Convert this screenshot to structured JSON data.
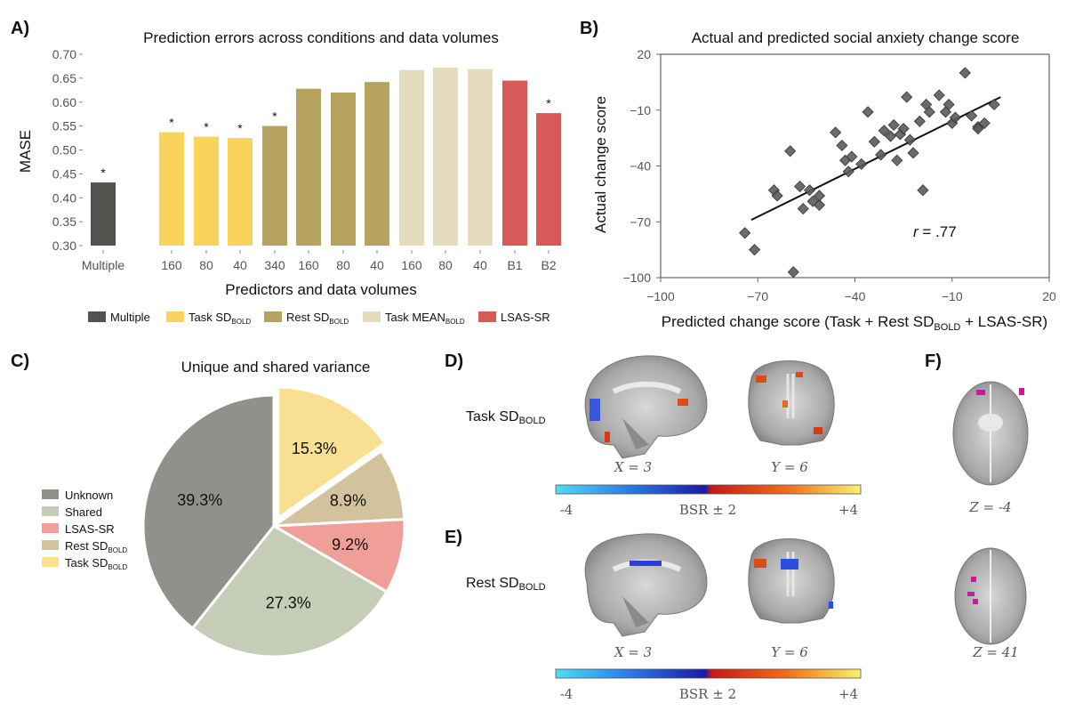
{
  "panels": {
    "a": "A)",
    "b": "B)",
    "c": "C)",
    "d": "D)",
    "e": "E)",
    "f": "F)"
  },
  "chart_data": [
    {
      "id": "A",
      "type": "bar",
      "title": "Prediction errors across conditions and data volumes",
      "xlabel": "Predictors and data volumes",
      "ylabel": "MASE",
      "ylim": [
        0.3,
        0.7
      ],
      "yticks": [
        "0.70",
        "0.65",
        "0.60",
        "0.55",
        "0.50",
        "0.45",
        "0.40",
        "0.35",
        "0.30"
      ],
      "categories": [
        "Multiple",
        "160",
        "80",
        "40",
        "340",
        "160",
        "80",
        "40",
        "160",
        "80",
        "40",
        "B1",
        "B2"
      ],
      "values": [
        0.432,
        0.537,
        0.528,
        0.525,
        0.55,
        0.628,
        0.62,
        0.642,
        0.667,
        0.672,
        0.669,
        0.645,
        0.577
      ],
      "groups": [
        "Multiple",
        "Task SD",
        "Task SD",
        "Task SD",
        "Rest SD",
        "Rest SD",
        "Rest SD",
        "Rest SD",
        "Task MEAN",
        "Task MEAN",
        "Task MEAN",
        "LSAS-SR",
        "LSAS-SR"
      ],
      "significance": [
        "*",
        "*",
        "*",
        "*",
        "*",
        "",
        "",
        "",
        "",
        "",
        "",
        "",
        "*"
      ],
      "colors": {
        "Multiple": "#51534e",
        "Task SD": "#f9d35c",
        "Rest SD": "#b6a35f",
        "Task MEAN": "#e4dcbd",
        "LSAS-SR": "#d75a58"
      },
      "legend": [
        {
          "name": "Multiple",
          "main": "Multiple",
          "sub": "",
          "color": "#51534e"
        },
        {
          "name": "Task SD",
          "main": "Task SD",
          "sub": "BOLD",
          "color": "#f9d35c"
        },
        {
          "name": "Rest SD",
          "main": "Rest SD",
          "sub": "BOLD",
          "color": "#b6a35f"
        },
        {
          "name": "Task MEAN",
          "main": "Task MEAN",
          "sub": "BOLD",
          "color": "#e4dcbd"
        },
        {
          "name": "LSAS-SR",
          "main": "LSAS-SR",
          "sub": "",
          "color": "#d75a58"
        }
      ]
    },
    {
      "id": "B",
      "type": "scatter",
      "title": "Actual and predicted social anxiety change score",
      "xlabel_main": "Predicted change score (Task + Rest SD",
      "xlabel_sub": "BOLD",
      "xlabel_end": " + LSAS-SR)",
      "ylabel": "Actual change score",
      "xlim": [
        -100,
        20
      ],
      "ylim": [
        -100,
        20
      ],
      "xticks": [
        "−100",
        "−70",
        "−40",
        "−10",
        "20"
      ],
      "yticks": [
        "20",
        "−10",
        "−40",
        "−70",
        "−100"
      ],
      "annotation_r": "r",
      "annotation_val": " = .77",
      "regression": {
        "x1": -72,
        "y1": -69,
        "x2": 5,
        "y2": -3
      },
      "points": [
        [
          -74,
          -76
        ],
        [
          -71,
          -85
        ],
        [
          -65,
          -53
        ],
        [
          -64,
          -56
        ],
        [
          -59,
          -97
        ],
        [
          -60,
          -32
        ],
        [
          -57,
          -51
        ],
        [
          -56,
          -63
        ],
        [
          -54,
          -53
        ],
        [
          -51,
          -61
        ],
        [
          -53,
          -59
        ],
        [
          -51,
          -56
        ],
        [
          -46,
          -22
        ],
        [
          -44,
          -29
        ],
        [
          -43,
          -37
        ],
        [
          -41,
          -35
        ],
        [
          -42,
          -43
        ],
        [
          -38,
          -39
        ],
        [
          -36,
          -11
        ],
        [
          -34,
          -27
        ],
        [
          -32,
          -34
        ],
        [
          -31,
          -21
        ],
        [
          -29,
          -24
        ],
        [
          -28,
          -18
        ],
        [
          -27,
          -37
        ],
        [
          -26,
          -23
        ],
        [
          -25,
          -20
        ],
        [
          -23,
          -26
        ],
        [
          -24,
          -3
        ],
        [
          -22,
          -33
        ],
        [
          -20,
          -16
        ],
        [
          -19,
          -53
        ],
        [
          -18,
          -7
        ],
        [
          -17,
          -11
        ],
        [
          -14,
          -2
        ],
        [
          -12,
          -11
        ],
        [
          -11,
          -7
        ],
        [
          -10,
          -17
        ],
        [
          -9,
          -14
        ],
        [
          -6,
          10
        ],
        [
          -4,
          -13
        ],
        [
          -2,
          -19
        ],
        [
          -2,
          -20
        ],
        [
          0,
          -17
        ],
        [
          3,
          -7
        ]
      ]
    },
    {
      "id": "C",
      "type": "pie",
      "title": "Unique and shared variance",
      "slices": [
        {
          "name": "Task SD",
          "sub": "BOLD",
          "value": 15.3,
          "label": "15.3%",
          "color": "#f8df92",
          "exploded": true
        },
        {
          "name": "Rest SD",
          "sub": "BOLD",
          "value": 8.9,
          "label": "8.9%",
          "color": "#d2c39d",
          "exploded": false
        },
        {
          "name": "LSAS-SR",
          "sub": "",
          "value": 9.2,
          "label": "9.2%",
          "color": "#ef9f97",
          "exploded": false
        },
        {
          "name": "Shared",
          "sub": "",
          "value": 27.3,
          "label": "27.3%",
          "color": "#c5cdb7",
          "exploded": false
        },
        {
          "name": "Unknown",
          "sub": "",
          "value": 39.3,
          "label": "39.3%",
          "color": "#8f918a",
          "exploded": false
        }
      ],
      "legend_order": [
        "Unknown",
        "Shared",
        "LSAS-SR",
        "Rest SD",
        "Task SD"
      ]
    }
  ],
  "brain": {
    "d_row_main": "Task SD",
    "e_row_main": "Rest SD",
    "row_sub": "BOLD",
    "x_label": "X = 3",
    "y_label": "Y = 6",
    "z1_label": "Z = -4",
    "z2_label": "Z = 41",
    "colorbar_min": "-4",
    "colorbar_mid": "BSR ± 2",
    "colorbar_max": "+4"
  }
}
